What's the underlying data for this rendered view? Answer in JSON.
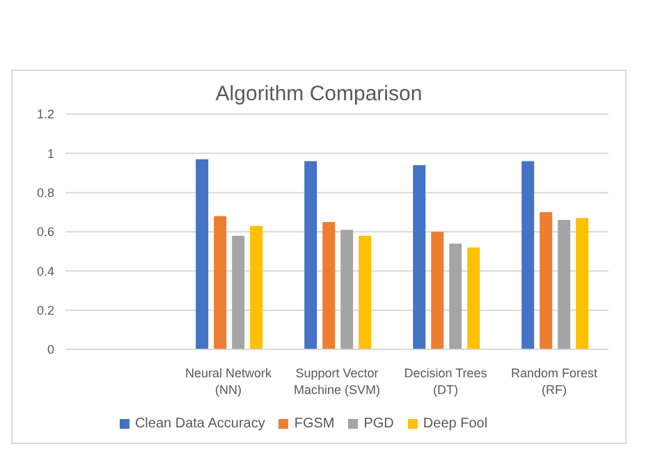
{
  "chart_data": {
    "type": "bar",
    "title": "Algorithm Comparison",
    "categories": [
      null,
      "Neural Network (NN)",
      "Support Vector Machine (SVM)",
      "Decision Trees (DT)",
      "Random Forest (RF)"
    ],
    "series": [
      {
        "name": "Clean Data Accuracy",
        "color": "#4472c4",
        "values": [
          null,
          0.97,
          0.96,
          0.94,
          0.96
        ]
      },
      {
        "name": "FGSM",
        "color": "#ed7d31",
        "values": [
          null,
          0.68,
          0.65,
          0.6,
          0.7
        ]
      },
      {
        "name": "PGD",
        "color": "#a5a5a5",
        "values": [
          null,
          0.58,
          0.61,
          0.54,
          0.66
        ]
      },
      {
        "name": "Deep Fool",
        "color": "#ffc000",
        "values": [
          null,
          0.63,
          0.58,
          0.52,
          0.67
        ]
      }
    ],
    "ylim": [
      0,
      1.2
    ],
    "yticks": [
      0,
      0.2,
      0.4,
      0.6,
      0.8,
      1,
      1.2
    ],
    "grid": "y",
    "legend": "bottom"
  }
}
